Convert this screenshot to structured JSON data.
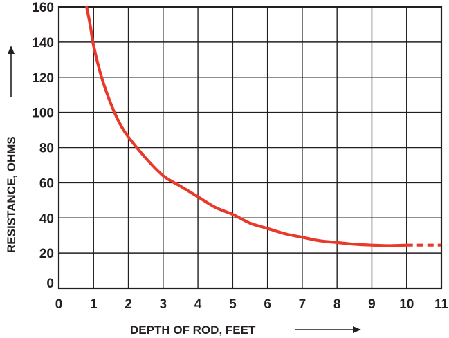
{
  "chart_data": {
    "type": "line",
    "xlabel": "DEPTH OF ROD, FEET",
    "ylabel": "RESISTANCE, OHMS",
    "xlim": [
      0,
      11
    ],
    "ylim": [
      0,
      160
    ],
    "x_ticks": [
      "0",
      "1",
      "2",
      "3",
      "4",
      "5",
      "6",
      "7",
      "8",
      "9",
      "10",
      "11"
    ],
    "y_ticks": [
      "0",
      "20",
      "40",
      "60",
      "80",
      "100",
      "120",
      "140",
      "160"
    ],
    "grid": true,
    "legend": "none",
    "series": [
      {
        "color": "#e8392a",
        "line_style": "solid",
        "points": [
          [
            0.8,
            160
          ],
          [
            0.9,
            150
          ],
          [
            1.0,
            138
          ],
          [
            1.2,
            122
          ],
          [
            1.4,
            110
          ],
          [
            1.6,
            100
          ],
          [
            1.8,
            92
          ],
          [
            2.0,
            86
          ],
          [
            2.5,
            74
          ],
          [
            3.0,
            64
          ],
          [
            3.5,
            58
          ],
          [
            4.0,
            52
          ],
          [
            4.5,
            46
          ],
          [
            5.0,
            42
          ],
          [
            5.5,
            37
          ],
          [
            6.0,
            34
          ],
          [
            6.5,
            31
          ],
          [
            7.0,
            29
          ],
          [
            7.5,
            27
          ],
          [
            8.0,
            26
          ],
          [
            8.5,
            25
          ],
          [
            9.0,
            24.5
          ],
          [
            9.5,
            24.2
          ],
          [
            10.0,
            24.5
          ]
        ]
      },
      {
        "color": "#e8392a",
        "line_style": "dashed",
        "points": [
          [
            10.0,
            24.5
          ],
          [
            11.0,
            24.5
          ]
        ]
      }
    ]
  }
}
